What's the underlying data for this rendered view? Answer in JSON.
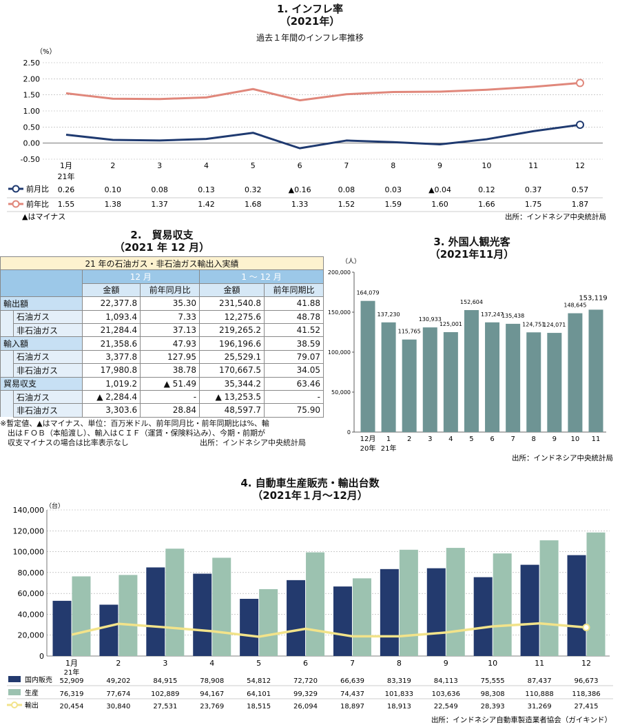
{
  "inflation": {
    "title": "1. インフレ率",
    "subtitle": "（2021年）",
    "caption": "過去１年間のインフレ率推移",
    "unit": "（%）",
    "legend_mom": "前月比",
    "legend_yoy": "前年比",
    "minus_note": "▲はマイナス",
    "source": "出所：インドネシア中央統計局",
    "mom_display": [
      "0.26",
      "0.10",
      "0.08",
      "0.13",
      "0.32",
      "▲0.16",
      "0.08",
      "0.03",
      "▲0.04",
      "0.12",
      "0.37",
      "0.57"
    ],
    "yoy_display": [
      "1.55",
      "1.38",
      "1.37",
      "1.42",
      "1.68",
      "1.33",
      "1.52",
      "1.59",
      "1.60",
      "1.66",
      "1.75",
      "1.87"
    ],
    "colors": {
      "mom": "#1f3a70",
      "yoy": "#e0877b"
    }
  },
  "trade": {
    "title": "2.　貿易収支",
    "subtitle": "（2021 年 12 月）",
    "banner": "21 年の石油ガス・非石油ガス輸出入実績",
    "period1": "12 月",
    "period2": "1 ～ 12 月",
    "col_amount": "金額",
    "col_mom": "前年同月比",
    "col_ytd": "前年同期比",
    "rows": [
      {
        "label": "輸出額",
        "indent": false,
        "v1": "22,377.8",
        "v2": "35.30",
        "v3": "231,540.8",
        "v4": "41.88"
      },
      {
        "label": "石油ガス",
        "indent": true,
        "v1": "1,093.4",
        "v2": "7.33",
        "v3": "12,275.6",
        "v4": "48.78"
      },
      {
        "label": "非石油ガス",
        "indent": true,
        "v1": "21,284.4",
        "v2": "37.13",
        "v3": "219,265.2",
        "v4": "41.52"
      },
      {
        "label": "輸入額",
        "indent": false,
        "v1": "21,358.6",
        "v2": "47.93",
        "v3": "196,196.6",
        "v4": "38.59"
      },
      {
        "label": "石油ガス",
        "indent": true,
        "v1": "3,377.8",
        "v2": "127.95",
        "v3": "25,529.1",
        "v4": "79.07"
      },
      {
        "label": "非石油ガス",
        "indent": true,
        "v1": "17,980.8",
        "v2": "38.78",
        "v3": "170,667.5",
        "v4": "34.05"
      },
      {
        "label": "貿易収支",
        "indent": false,
        "v1": "1,019.2",
        "v2": "▲ 51.49",
        "v3": "35,344.2",
        "v4": "63.46"
      },
      {
        "label": "石油ガス",
        "indent": true,
        "v1": "▲ 2,284.4",
        "v2": "-",
        "v3": "▲ 13,253.5",
        "v4": "-"
      },
      {
        "label": "非石油ガス",
        "indent": true,
        "v1": "3,303.6",
        "v2": "28.84",
        "v3": "48,597.7",
        "v4": "75.90"
      }
    ],
    "note1": "※暫定値、▲はマイナス、単位：百万米ドル、前年同月比・前年同期比は%、輸",
    "note2": "　出はＦＯＢ（本船渡し）、輸入はＣＩＦ（運賃・保険料込み）、今期・前期が",
    "note3": "　収支マイナスの場合は比率表示なし",
    "source": "出所：インドネシア中央統計局"
  },
  "tourists": {
    "title": "3. 外国人観光客",
    "subtitle": "（2021年11月）",
    "source": "出所：インドネシア中央統計局",
    "bar_color": "#6e9494"
  },
  "auto": {
    "title": "4. 自動車生産販売・輸出台数",
    "subtitle": "（2021年１月～12月）",
    "source": "出所：インドネシア自動車製造業者協会（ガイキンド）",
    "colors": {
      "domestic": "#233a6e",
      "production": "#9cc2b0",
      "export": "#f2e38a"
    }
  },
  "chart_data": [
    {
      "type": "line",
      "title": "1. インフレ率",
      "ylabel": "（%）",
      "ylim": [
        -0.5,
        2.5
      ],
      "yticks": [
        "2.50",
        "2.00",
        "1.50",
        "1.00",
        "0.50",
        "0.00",
        "-0.50"
      ],
      "categories": [
        "1月",
        "2",
        "3",
        "4",
        "5",
        "6",
        "7",
        "8",
        "9",
        "10",
        "11",
        "12"
      ],
      "category_sub": "21年",
      "series": [
        {
          "name": "前月比",
          "values": [
            0.26,
            0.1,
            0.08,
            0.13,
            0.32,
            -0.16,
            0.08,
            0.03,
            -0.04,
            0.12,
            0.37,
            0.57
          ]
        },
        {
          "name": "前年比",
          "values": [
            1.55,
            1.38,
            1.37,
            1.42,
            1.68,
            1.33,
            1.52,
            1.59,
            1.6,
            1.66,
            1.75,
            1.87
          ]
        }
      ],
      "grid": true
    },
    {
      "type": "bar",
      "title": "3. 外国人観光客",
      "ylabel": "（人）",
      "ylim": [
        0,
        200000
      ],
      "yticks": [
        "200,000",
        "150,000",
        "100,000",
        "50,000",
        "0"
      ],
      "categories": [
        "12月",
        "1",
        "2",
        "3",
        "4",
        "5",
        "6",
        "7",
        "8",
        "9",
        "10",
        "11"
      ],
      "category_subs": [
        "20年",
        "21年",
        "",
        "",
        "",
        "",
        "",
        "",
        "",
        "",
        "",
        ""
      ],
      "values": [
        164079,
        137230,
        115765,
        130933,
        125001,
        152604,
        137247,
        135438,
        124751,
        124071,
        148645,
        153119
      ],
      "labels": [
        "164,079",
        "137,230",
        "115,765",
        "130,933",
        "125,001",
        "152,604",
        "137,247",
        "135,438",
        "124,751",
        "124,071",
        "148,645",
        "153,119"
      ]
    },
    {
      "type": "bar",
      "title": "4. 自動車生産販売・輸出台数",
      "ylabel": "（台）",
      "ylim": [
        0,
        140000
      ],
      "yticks": [
        "140,000",
        "120,000",
        "100,000",
        "80,000",
        "60,000",
        "40,000",
        "20,000",
        "0"
      ],
      "categories": [
        "1月",
        "2",
        "3",
        "4",
        "5",
        "6",
        "7",
        "8",
        "9",
        "10",
        "11",
        "12"
      ],
      "category_sub": "21年",
      "series": [
        {
          "name": "国内販売",
          "values": [
            52909,
            49202,
            84915,
            78908,
            54812,
            72720,
            66639,
            83319,
            84113,
            75555,
            87437,
            96673
          ],
          "labels": [
            "52,909",
            "49,202",
            "84,915",
            "78,908",
            "54,812",
            "72,720",
            "66,639",
            "83,319",
            "84,113",
            "75,555",
            "87,437",
            "96,673"
          ]
        },
        {
          "name": "生産",
          "values": [
            76319,
            77674,
            102889,
            94167,
            64101,
            99329,
            74437,
            101833,
            103636,
            98308,
            110888,
            118386
          ],
          "labels": [
            "76,319",
            "77,674",
            "102,889",
            "94,167",
            "64,101",
            "99,329",
            "74,437",
            "101,833",
            "103,636",
            "98,308",
            "110,888",
            "118,386"
          ]
        },
        {
          "name": "輸出",
          "values": [
            20454,
            30840,
            27531,
            23769,
            18515,
            26094,
            18897,
            18913,
            22549,
            28393,
            31269,
            27415
          ],
          "labels": [
            "20,454",
            "30,840",
            "27,531",
            "23,769",
            "18,515",
            "26,094",
            "18,897",
            "18,913",
            "22,549",
            "28,393",
            "31,269",
            "27,415"
          ]
        }
      ],
      "grid": true
    }
  ]
}
